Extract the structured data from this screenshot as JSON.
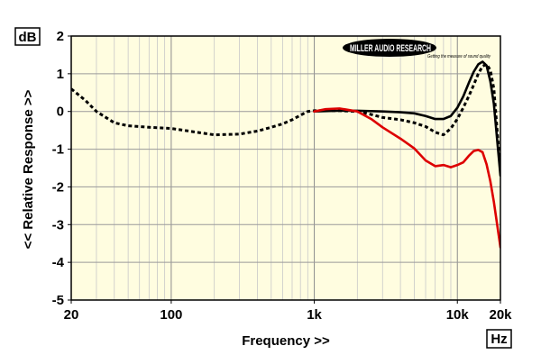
{
  "chart_data": {
    "type": "line",
    "title": "",
    "xlabel": "Frequency >>",
    "ylabel": "<< Relative Response >>",
    "y_unit": "dB",
    "x_unit": "Hz",
    "x_scale": "log",
    "xlim": [
      20,
      20000
    ],
    "ylim": [
      -5,
      2
    ],
    "grid": true,
    "legend": "none",
    "background": "#fffde0",
    "x_ticks": [
      {
        "value": 20,
        "label": "20"
      },
      {
        "value": 100,
        "label": "100"
      },
      {
        "value": 1000,
        "label": "1k"
      },
      {
        "value": 10000,
        "label": "10k"
      },
      {
        "value": 20000,
        "label": "20k"
      }
    ],
    "y_ticks": [
      {
        "value": 2,
        "label": "2"
      },
      {
        "value": 1,
        "label": "1"
      },
      {
        "value": 0,
        "label": "0"
      },
      {
        "value": -1,
        "label": "-1"
      },
      {
        "value": -2,
        "label": "-2"
      },
      {
        "value": -3,
        "label": "-3"
      },
      {
        "value": -4,
        "label": "-4"
      },
      {
        "value": -5,
        "label": "-5"
      }
    ],
    "series": [
      {
        "color": "#000000",
        "style": "dotted",
        "x": [
          20,
          25,
          30,
          40,
          50,
          70,
          100,
          150,
          200,
          300,
          400,
          500,
          600,
          700,
          800,
          900,
          1000,
          1500,
          2000,
          2500,
          3000,
          4000,
          5000,
          6000,
          7000,
          8000,
          9000,
          10000,
          11000,
          12000,
          13000,
          14000,
          15000,
          16000,
          17000,
          18000,
          20000
        ],
        "y": [
          0.6,
          0.3,
          0.0,
          -0.3,
          -0.38,
          -0.42,
          -0.45,
          -0.55,
          -0.62,
          -0.6,
          -0.52,
          -0.42,
          -0.33,
          -0.22,
          -0.1,
          0.0,
          0.02,
          0.02,
          0.0,
          -0.08,
          -0.16,
          -0.22,
          -0.3,
          -0.4,
          -0.55,
          -0.62,
          -0.45,
          -0.2,
          0.1,
          0.4,
          0.7,
          1.0,
          1.2,
          1.25,
          1.1,
          0.6,
          -1.6
        ]
      },
      {
        "color": "#000000",
        "style": "solid",
        "x": [
          1000,
          1500,
          2000,
          3000,
          4000,
          5000,
          6000,
          7000,
          8000,
          9000,
          10000,
          11000,
          12000,
          13000,
          14000,
          15000,
          16000,
          17000,
          18000,
          20000
        ],
        "y": [
          0.0,
          0.02,
          0.02,
          0.0,
          -0.02,
          -0.05,
          -0.12,
          -0.2,
          -0.2,
          -0.12,
          0.1,
          0.4,
          0.75,
          1.05,
          1.25,
          1.32,
          1.22,
          0.8,
          0.2,
          -1.7
        ]
      },
      {
        "color": "#dd0000",
        "style": "solid",
        "x": [
          1000,
          1200,
          1500,
          2000,
          2500,
          3000,
          4000,
          5000,
          6000,
          7000,
          8000,
          9000,
          10000,
          11000,
          12000,
          13000,
          14000,
          15000,
          16000,
          17000,
          18000,
          20000
        ],
        "y": [
          0.0,
          0.06,
          0.08,
          0.0,
          -0.2,
          -0.42,
          -0.72,
          -0.98,
          -1.3,
          -1.45,
          -1.42,
          -1.48,
          -1.42,
          -1.35,
          -1.18,
          -1.05,
          -1.02,
          -1.08,
          -1.4,
          -1.85,
          -2.4,
          -3.6
        ]
      }
    ]
  },
  "logo": {
    "text": "MILLER AUDIO RESEARCH",
    "tagline": "Getting the measure of sound quality"
  }
}
